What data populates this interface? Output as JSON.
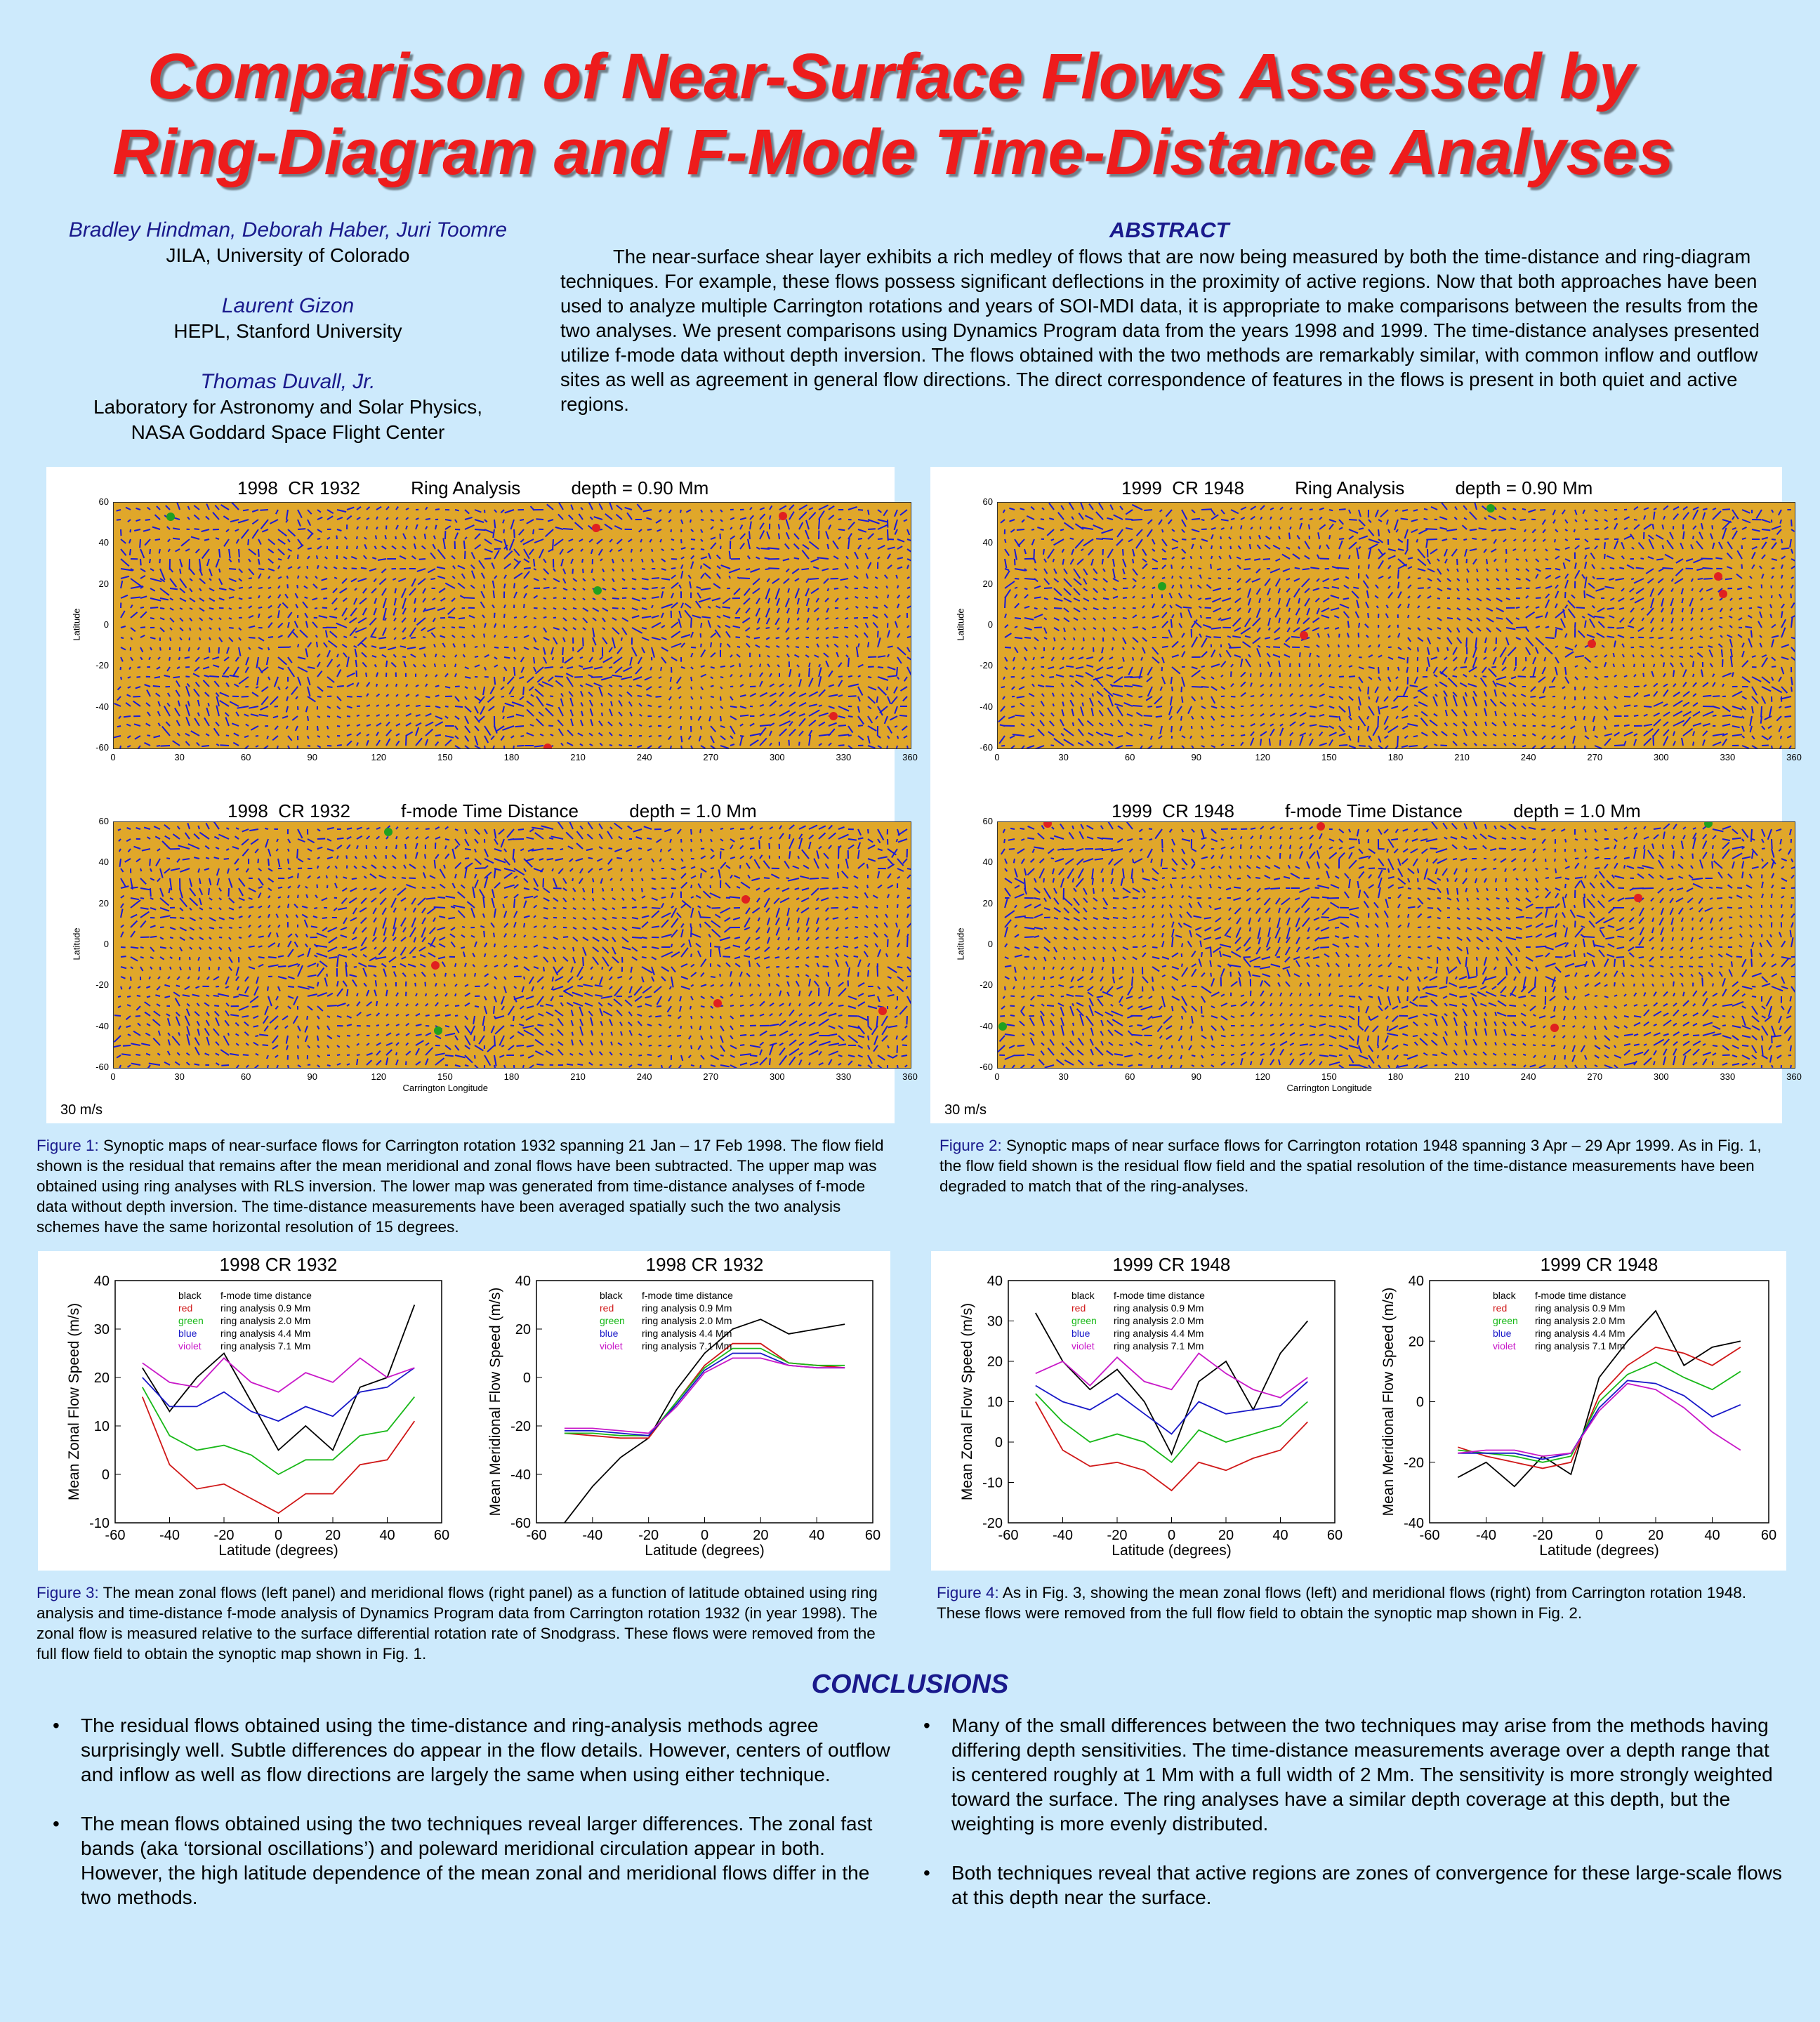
{
  "title": {
    "line1": "Comparison of Near-Surface Flows Assessed by",
    "line2": "Ring-Diagram and F-Mode Time-Distance Analyses"
  },
  "authors": [
    {
      "name": "Bradley Hindman, Deborah Haber, Juri Toomre",
      "affiliation": [
        "JILA, University of Colorado"
      ]
    },
    {
      "name": "Laurent Gizon",
      "affiliation": [
        "HEPL, Stanford University"
      ]
    },
    {
      "name": "Thomas Duvall, Jr.",
      "affiliation": [
        "Laboratory for Astronomy and Solar Physics,",
        "NASA Goddard Space Flight Center"
      ]
    }
  ],
  "abstract": {
    "heading": "ABSTRACT",
    "text": "The near-surface shear layer exhibits a rich medley of flows that are now being measured by both the time-distance and ring-diagram techniques.  For example, these flows possess significant deflections in the proximity of active regions.  Now that both approaches have been used to analyze multiple Carrington rotations and years of SOI-MDI data, it is appropriate to make comparisons between the results from the two analyses.  We present comparisons using Dynamics Program data from the years 1998 and 1999.  The time-distance analyses presented utilize f-mode data without depth inversion.  The flows obtained with the two methods are remarkably similar, with common inflow and outflow sites as well as agreement in general flow directions.  The direct correspondence of features in the flows is present in both quiet and active regions."
  },
  "maps": {
    "lat_ticks": [
      "60",
      "40",
      "20",
      "0",
      "-20",
      "-40",
      "-60"
    ],
    "lon_ticks": [
      "0",
      "30",
      "60",
      "90",
      "120",
      "150",
      "180",
      "210",
      "240",
      "270",
      "300",
      "330",
      "360"
    ],
    "ylabel": "Latitude",
    "xlabel": "Carrington Longitude",
    "scale": "30 m/s",
    "fig1_top": "1998  CR 1932          Ring Analysis          depth = 0.90 Mm",
    "fig1_bottom": "1998  CR 1932          f-mode Time Distance          depth = 1.0 Mm",
    "fig2_top": "1999  CR 1948          Ring Analysis          depth = 0.90 Mm",
    "fig2_bottom": "1999  CR 1948          f-mode Time Distance          depth = 1.0 Mm"
  },
  "captions": {
    "fig1_label": "Figure 1:",
    "fig1": "  Synoptic maps of near-surface flows for Carrington rotation 1932 spanning 21 Jan – 17 Feb 1998.  The flow field shown is the residual that remains after the mean meridional and zonal flows have been subtracted.  The upper map was obtained using ring analyses with RLS inversion.  The lower map was generated from time-distance analyses of f-mode data without depth inversion.  The time-distance measurements have been averaged spatially such the two analysis schemes have the same horizontal resolution of 15 degrees.",
    "fig2_label": "Figure 2:",
    "fig2": "  Synoptic maps of near surface flows for Carrington rotation 1948 spanning 3 Apr – 29 Apr 1999.  As in Fig. 1, the flow field shown is the residual flow field and the spatial resolution of the time-distance measurements have been degraded to match that of the ring-analyses.",
    "fig3_label": "Figure 3:",
    "fig3": "   The mean zonal flows (left panel) and meridional flows (right panel) as a function of latitude obtained using ring analysis and time-distance f-mode analysis of Dynamics Program data from Carrington rotation 1932 (in year 1998).  The zonal flow is measured relative to the surface differential rotation rate of Snodgrass.  These flows were removed from the full flow field to obtain the synoptic map shown in Fig. 1.",
    "fig4_label": "Figure 4:",
    "fig4": "   As in Fig. 3,  showing the mean zonal flows (left) and meridional flows (right) from Carrington rotation 1948. These flows were removed from the full flow field to obtain the synoptic map shown in Fig. 2."
  },
  "legend": [
    {
      "color_name": "black",
      "label": "f-mode time distance",
      "color": "#000000"
    },
    {
      "color_name": "red",
      "label": "ring analysis 0.9 Mm",
      "color": "#d01818"
    },
    {
      "color_name": "green",
      "label": "ring analysis 2.0 Mm",
      "color": "#18b818"
    },
    {
      "color_name": "blue",
      "label": "ring analysis 4.4 Mm",
      "color": "#1818c8"
    },
    {
      "color_name": "violet",
      "label": "ring analysis 7.1 Mm",
      "color": "#c818c8"
    }
  ],
  "chart_data": [
    {
      "type": "line",
      "title": "1998    CR 1932",
      "xlabel": "Latitude (degrees)",
      "ylabel": "Mean Zonal Flow Speed (m/s)",
      "xlim": [
        -60,
        60
      ],
      "ylim": [
        -10,
        40
      ],
      "xticks": [
        -60,
        -40,
        -20,
        0,
        20,
        40,
        60
      ],
      "yticks": [
        -10,
        0,
        10,
        20,
        30,
        40
      ],
      "x": [
        -50,
        -40,
        -30,
        -20,
        -10,
        0,
        10,
        20,
        30,
        40,
        50
      ],
      "series": [
        {
          "name": "f-mode time distance",
          "color": "#000000",
          "values": [
            22,
            13,
            20,
            25,
            15,
            5,
            10,
            5,
            18,
            20,
            35
          ]
        },
        {
          "name": "ring analysis 0.9 Mm",
          "color": "#d01818",
          "values": [
            16,
            2,
            -3,
            -2,
            -5,
            -8,
            -4,
            -4,
            2,
            3,
            11
          ]
        },
        {
          "name": "ring analysis 2.0 Mm",
          "color": "#18b818",
          "values": [
            18,
            8,
            5,
            6,
            4,
            0,
            3,
            3,
            8,
            9,
            16
          ]
        },
        {
          "name": "ring analysis 4.4 Mm",
          "color": "#1818c8",
          "values": [
            20,
            14,
            14,
            17,
            13,
            11,
            14,
            12,
            17,
            18,
            22
          ]
        },
        {
          "name": "ring analysis 7.1 Mm",
          "color": "#c818c8",
          "values": [
            23,
            19,
            18,
            24,
            19,
            17,
            21,
            19,
            24,
            20,
            22
          ]
        }
      ]
    },
    {
      "type": "line",
      "title": "1998    CR 1932",
      "xlabel": "Latitude (degrees)",
      "ylabel": "Mean Meridional Flow Speed (m/s)",
      "xlim": [
        -60,
        60
      ],
      "ylim": [
        -60,
        40
      ],
      "xticks": [
        -60,
        -40,
        -20,
        0,
        20,
        40,
        60
      ],
      "yticks": [
        -60,
        -40,
        -20,
        0,
        20,
        40
      ],
      "x": [
        -50,
        -40,
        -30,
        -20,
        -10,
        0,
        10,
        20,
        30,
        40,
        50
      ],
      "series": [
        {
          "name": "f-mode time distance",
          "color": "#000000",
          "values": [
            -60,
            -45,
            -33,
            -25,
            -5,
            10,
            20,
            24,
            18,
            20,
            22
          ]
        },
        {
          "name": "ring analysis 0.9 Mm",
          "color": "#d01818",
          "values": [
            -23,
            -24,
            -25,
            -25,
            -10,
            5,
            14,
            14,
            6,
            5,
            4
          ]
        },
        {
          "name": "ring analysis 2.0 Mm",
          "color": "#18b818",
          "values": [
            -23,
            -23,
            -24,
            -24,
            -10,
            4,
            12,
            12,
            6,
            5,
            5
          ]
        },
        {
          "name": "ring analysis 4.4 Mm",
          "color": "#1818c8",
          "values": [
            -22,
            -22,
            -23,
            -24,
            -11,
            3,
            10,
            10,
            5,
            4,
            4
          ]
        },
        {
          "name": "ring analysis 7.1 Mm",
          "color": "#c818c8",
          "values": [
            -21,
            -21,
            -22,
            -23,
            -12,
            2,
            8,
            8,
            5,
            4,
            4
          ]
        }
      ]
    },
    {
      "type": "line",
      "title": "1999    CR 1948",
      "xlabel": "Latitude (degrees)",
      "ylabel": "Mean Zonal Flow Speed (m/s)",
      "xlim": [
        -60,
        60
      ],
      "ylim": [
        -20,
        40
      ],
      "xticks": [
        -60,
        -40,
        -20,
        0,
        20,
        40,
        60
      ],
      "yticks": [
        -20,
        -10,
        0,
        10,
        20,
        30,
        40
      ],
      "x": [
        -50,
        -40,
        -30,
        -20,
        -10,
        0,
        10,
        20,
        30,
        40,
        50
      ],
      "series": [
        {
          "name": "f-mode time distance",
          "color": "#000000",
          "values": [
            32,
            20,
            13,
            18,
            10,
            -3,
            15,
            20,
            8,
            22,
            30
          ]
        },
        {
          "name": "ring analysis 0.9 Mm",
          "color": "#d01818",
          "values": [
            10,
            -2,
            -6,
            -5,
            -7,
            -12,
            -5,
            -7,
            -4,
            -2,
            5
          ]
        },
        {
          "name": "ring analysis 2.0 Mm",
          "color": "#18b818",
          "values": [
            12,
            5,
            0,
            2,
            0,
            -5,
            3,
            0,
            2,
            4,
            10
          ]
        },
        {
          "name": "ring analysis 4.4 Mm",
          "color": "#1818c8",
          "values": [
            14,
            10,
            8,
            12,
            7,
            2,
            10,
            7,
            8,
            9,
            15
          ]
        },
        {
          "name": "ring analysis 7.1 Mm",
          "color": "#c818c8",
          "values": [
            17,
            20,
            14,
            21,
            15,
            13,
            22,
            17,
            13,
            11,
            16
          ]
        }
      ]
    },
    {
      "type": "line",
      "title": "1999    CR 1948",
      "xlabel": "Latitude (degrees)",
      "ylabel": "Mean Meridional Flow Speed (m/s)",
      "xlim": [
        -60,
        60
      ],
      "ylim": [
        -40,
        40
      ],
      "xticks": [
        -60,
        -40,
        -20,
        0,
        20,
        40,
        60
      ],
      "yticks": [
        -40,
        -20,
        0,
        20,
        40
      ],
      "x": [
        -50,
        -40,
        -30,
        -20,
        -10,
        0,
        10,
        20,
        30,
        40,
        50
      ],
      "series": [
        {
          "name": "f-mode time distance",
          "color": "#000000",
          "values": [
            -25,
            -20,
            -28,
            -18,
            -24,
            8,
            20,
            30,
            12,
            18,
            20
          ]
        },
        {
          "name": "ring analysis 0.9 Mm",
          "color": "#d01818",
          "values": [
            -15,
            -18,
            -20,
            -22,
            -20,
            2,
            12,
            18,
            16,
            12,
            18
          ]
        },
        {
          "name": "ring analysis 2.0 Mm",
          "color": "#18b818",
          "values": [
            -16,
            -17,
            -18,
            -20,
            -18,
            0,
            9,
            13,
            8,
            4,
            10
          ]
        },
        {
          "name": "ring analysis 4.4 Mm",
          "color": "#1818c8",
          "values": [
            -17,
            -17,
            -17,
            -19,
            -17,
            -2,
            7,
            6,
            2,
            -5,
            -1
          ]
        },
        {
          "name": "ring analysis 7.1 Mm",
          "color": "#c818c8",
          "values": [
            -17,
            -16,
            -16,
            -18,
            -17,
            -3,
            6,
            4,
            -2,
            -10,
            -16
          ]
        }
      ]
    }
  ],
  "conclusions": {
    "heading": "CONCLUSIONS",
    "left": [
      "The residual flows obtained using the time-distance and ring-analysis methods agree surprisingly well.  Subtle differences do appear in the flow details.  However, centers of outflow and inflow as well as flow directions are largely the same when using either technique.",
      "The mean flows obtained using the two techniques reveal larger differences.  The zonal fast bands (aka ‘torsional oscillations’) and poleward meridional circulation appear in both.  However, the high latitude dependence of the mean zonal and meridional flows differ in the two methods."
    ],
    "right": [
      "Many of the small differences between the two techniques may arise from the methods having differing depth sensitivities.  The time-distance measurements average over a depth range that is centered roughly at 1 Mm with a full width of 2 Mm.  The sensitivity is more strongly weighted toward the surface.  The ring analyses have a similar depth coverage at this depth, but the weighting is more evenly distributed.",
      "Both techniques reveal that active regions are zones of convergence for these large-scale flows at this depth near the surface."
    ]
  }
}
